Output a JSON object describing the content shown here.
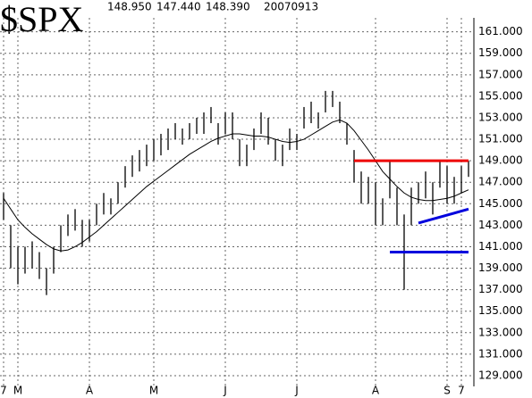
{
  "chart_data": {
    "type": "ohlc",
    "title": "$SPX",
    "quote": [
      "148.950",
      "147.440",
      "148.390"
    ],
    "date": "20070913",
    "categories": [
      "7",
      null,
      "M",
      null,
      null,
      null,
      null,
      null,
      null,
      null,
      null,
      null,
      "A",
      null,
      null,
      null,
      null,
      null,
      null,
      null,
      null,
      "M",
      null,
      null,
      null,
      null,
      null,
      null,
      null,
      null,
      null,
      "J",
      null,
      null,
      null,
      null,
      null,
      null,
      null,
      null,
      null,
      "J",
      null,
      null,
      null,
      null,
      null,
      null,
      null,
      null,
      null,
      null,
      "A",
      null,
      null,
      null,
      null,
      null,
      null,
      null,
      null,
      null,
      "S",
      null,
      "7",
      null
    ],
    "high": [
      146,
      143,
      141,
      141,
      141.5,
      140.5,
      139,
      141,
      143,
      144,
      144.5,
      143.5,
      143.5,
      145,
      146,
      145.5,
      147,
      148.5,
      149.5,
      150,
      150.5,
      151,
      151.5,
      152,
      152.5,
      152,
      152.5,
      153,
      153.5,
      154,
      152.5,
      153.5,
      153.5,
      151,
      150.5,
      152,
      153.5,
      153,
      151,
      150.5,
      152,
      151.5,
      154,
      154.5,
      153.5,
      155.5,
      155.5,
      154.5,
      152.5,
      150,
      148,
      147.5,
      147,
      145.5,
      149,
      146.5,
      144,
      146.5,
      147,
      148,
      147,
      149,
      148.5,
      147.5,
      148.5,
      149
    ],
    "low": [
      143.5,
      139,
      137.5,
      138.5,
      139,
      138,
      136.5,
      138.5,
      140.5,
      142,
      142.5,
      141,
      141.5,
      143,
      144,
      144,
      145,
      146.5,
      147.5,
      148,
      148.5,
      149,
      149.5,
      150,
      151,
      150.5,
      151,
      151.5,
      151.5,
      152.5,
      150.5,
      151.5,
      151,
      148.5,
      148.5,
      150,
      151.5,
      150.5,
      149,
      148.5,
      150,
      150,
      152,
      152.5,
      152,
      153.5,
      154,
      152.5,
      150.5,
      147,
      145,
      145,
      143,
      143,
      145.5,
      143,
      137,
      143,
      145,
      145.5,
      144,
      146.5,
      145,
      145,
      146,
      147.5
    ],
    "bar_color": "#000000",
    "moving_average": {
      "color": "#000000",
      "values": [
        145.5,
        144.5,
        143.5,
        142.8,
        142.2,
        141.7,
        141.2,
        140.8,
        140.6,
        140.7,
        141,
        141.4,
        141.9,
        142.4,
        143,
        143.6,
        144.2,
        144.8,
        145.4,
        146,
        146.6,
        147.1,
        147.6,
        148.1,
        148.6,
        149.1,
        149.6,
        150,
        150.4,
        150.8,
        151.1,
        151.3,
        151.5,
        151.5,
        151.4,
        151.3,
        151.3,
        151.2,
        151,
        150.8,
        150.7,
        150.8,
        151,
        151.4,
        151.8,
        152.2,
        152.6,
        152.8,
        152.5,
        151.8,
        150.9,
        150,
        149,
        148,
        147.3,
        146.6,
        146,
        145.6,
        145.4,
        145.3,
        145.3,
        145.4,
        145.5,
        145.7,
        146,
        146.3
      ]
    },
    "trend_lines": [
      {
        "color": "#ee0000",
        "start": 49,
        "end": 65,
        "values": [
          149,
          149
        ]
      },
      {
        "color": "#0000dd",
        "start": 54,
        "end": 65,
        "values": [
          140.5,
          140.5
        ]
      },
      {
        "color": "#0000dd",
        "start": 58,
        "end": 65,
        "values": [
          143.2,
          144.5
        ]
      }
    ],
    "ylim": [
      128,
      162.3
    ],
    "yticks": [
      {
        "value": 129,
        "label": "129.000"
      },
      {
        "value": 131,
        "label": "131.000"
      },
      {
        "value": 133,
        "label": "133.000"
      },
      {
        "value": 135,
        "label": "135.000"
      },
      {
        "value": 137,
        "label": "137.000"
      },
      {
        "value": 139,
        "label": "139.000"
      },
      {
        "value": 141,
        "label": "141.000"
      },
      {
        "value": 143,
        "label": "143.000"
      },
      {
        "value": 145,
        "label": "145.000"
      },
      {
        "value": 147,
        "label": "147.000"
      },
      {
        "value": 149,
        "label": "149.000"
      },
      {
        "value": 151,
        "label": "151.000"
      },
      {
        "value": 153,
        "label": "153.000"
      },
      {
        "value": 155,
        "label": "155.000"
      },
      {
        "value": 157,
        "label": "157.000"
      },
      {
        "value": 159,
        "label": "159.000"
      },
      {
        "value": 161,
        "label": "161.000"
      }
    ],
    "grid": true
  }
}
